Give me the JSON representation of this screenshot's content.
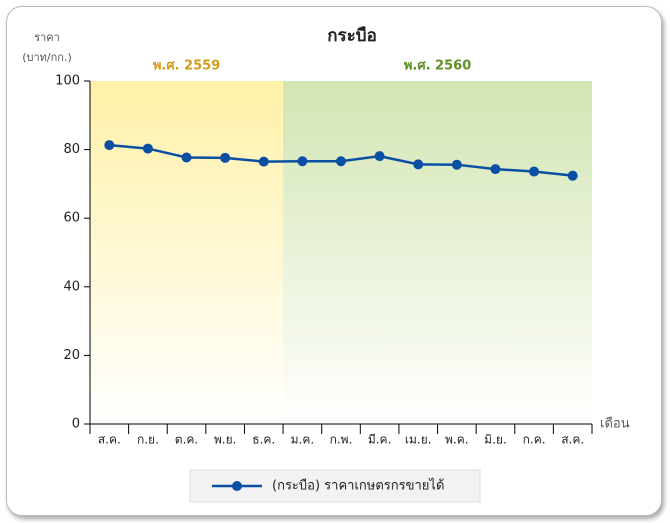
{
  "chart_data": {
    "type": "line",
    "title": "กระบือ",
    "ylabel": [
      "ราคา",
      "(บาท/กก.)"
    ],
    "xlabel": "เดือน",
    "categories": [
      "ส.ค.",
      "ก.ย.",
      "ต.ค.",
      "พ.ย.",
      "ธ.ค.",
      "ม.ค.",
      "ก.พ.",
      "มี.ค.",
      "เม.ย.",
      "พ.ค.",
      "มิ.ย.",
      "ก.ค.",
      "ส.ค."
    ],
    "series": [
      {
        "name": "(กระบือ) ราคาเกษตรกรขายได้",
        "color": "#0a4fa3",
        "values": [
          81.3,
          80.3,
          77.7,
          77.6,
          76.5,
          76.6,
          76.6,
          78.1,
          75.7,
          75.6,
          74.3,
          73.6,
          72.4
        ]
      }
    ],
    "periods": [
      {
        "label": "พ.ศ. 2559",
        "span": [
          0,
          4
        ],
        "color": "#fff1a8",
        "label_color": "#d39b1c"
      },
      {
        "label": "พ.ศ. 2560",
        "span": [
          5,
          12
        ],
        "color": "#d2e5b2",
        "label_color": "#5f8f25"
      }
    ],
    "ylim": [
      0,
      100
    ],
    "yticks": [
      0,
      20,
      40,
      60,
      80,
      100
    ]
  }
}
